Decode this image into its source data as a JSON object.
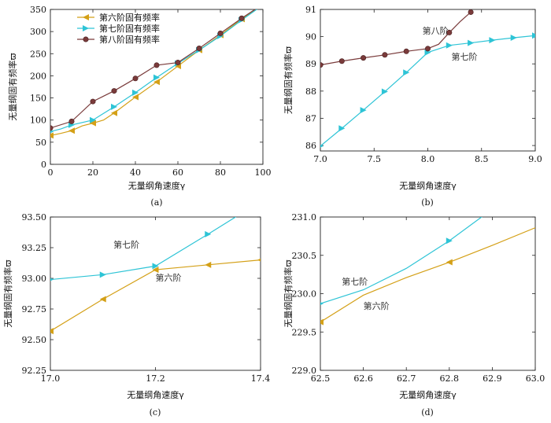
{
  "colors": {
    "sixth": "#D4A017",
    "seventh": "#2EC4D6",
    "eighth": "#7A3B3B"
  },
  "chart_data": [
    {
      "id": "a",
      "type": "line",
      "caption": "(a)",
      "xlabel": "无量纲角速度γ",
      "ylabel": "无量纲固有频率ϖ",
      "xlim": [
        0,
        100
      ],
      "ylim": [
        0,
        350
      ],
      "xticks": [
        0,
        20,
        40,
        60,
        80,
        100
      ],
      "yticks": [
        0,
        50,
        100,
        150,
        200,
        250,
        300,
        350
      ],
      "legend": [
        "第六阶固有频率",
        "第七阶固有频率",
        "第八阶固有频率"
      ],
      "series": [
        {
          "name": "第六阶固有频率",
          "color": "sixth",
          "marker": "tri-left",
          "x": [
            0,
            5,
            10,
            15,
            20,
            25,
            30,
            40,
            50,
            60,
            70,
            80,
            90,
            100
          ],
          "y": [
            65,
            70,
            76,
            87,
            93,
            100,
            116,
            152,
            186,
            222,
            258,
            292,
            328,
            360
          ],
          "marked": [
            0,
            10,
            20,
            30,
            40,
            50,
            60,
            70,
            80,
            90
          ]
        },
        {
          "name": "第七阶固有频率",
          "color": "seventh",
          "marker": "tri-right",
          "x": [
            0,
            5,
            10,
            20,
            30,
            40,
            50,
            60,
            70,
            80,
            90,
            100
          ],
          "y": [
            74,
            80,
            89,
            100,
            130,
            162,
            196,
            228,
            258,
            290,
            326,
            360
          ],
          "marked": [
            0,
            10,
            20,
            30,
            40,
            50,
            60,
            70,
            80,
            90
          ]
        },
        {
          "name": "第八阶固有频率",
          "color": "eighth",
          "marker": "circle",
          "x": [
            0,
            10,
            20,
            30,
            40,
            50,
            60,
            70,
            80,
            90,
            100
          ],
          "y": [
            82,
            97,
            142,
            166,
            194,
            224,
            230,
            262,
            296,
            330,
            362
          ],
          "marked": [
            0,
            10,
            20,
            30,
            40,
            50,
            60,
            70,
            80,
            90
          ]
        }
      ],
      "annotations": []
    },
    {
      "id": "b",
      "type": "line",
      "caption": "(b)",
      "xlabel": "无量纲角速度γ",
      "ylabel": "无量纲固有频率ϖ",
      "xlim": [
        7.0,
        9.0
      ],
      "ylim": [
        85.8,
        91.0
      ],
      "xticks": [
        7.0,
        7.5,
        8.0,
        8.5,
        9.0
      ],
      "xtick_labels": [
        "7.0",
        "7.5",
        "8.0",
        "8.5",
        "9.0"
      ],
      "yticks": [
        86,
        87,
        88,
        89,
        90,
        91
      ],
      "series": [
        {
          "name": "第七阶",
          "color": "seventh",
          "marker": "tri-right",
          "x": [
            7.0,
            7.2,
            7.4,
            7.6,
            7.8,
            8.0,
            8.2,
            8.4,
            8.6,
            8.8,
            9.0
          ],
          "y": [
            85.98,
            86.63,
            87.3,
            87.98,
            88.68,
            89.42,
            89.68,
            89.77,
            89.87,
            89.96,
            90.04
          ],
          "marked": [
            7.0,
            7.2,
            7.4,
            7.6,
            7.8,
            8.0,
            8.2,
            8.4,
            8.6,
            8.8,
            9.0
          ]
        },
        {
          "name": "第八阶",
          "color": "eighth",
          "marker": "circle",
          "x": [
            7.0,
            7.2,
            7.4,
            7.6,
            7.8,
            8.0,
            8.1,
            8.2,
            8.3,
            8.4
          ],
          "y": [
            88.96,
            89.1,
            89.22,
            89.33,
            89.46,
            89.56,
            89.72,
            90.15,
            90.55,
            90.9
          ],
          "marked": [
            7.0,
            7.2,
            7.4,
            7.6,
            7.8,
            8.0,
            8.2,
            8.4
          ]
        }
      ],
      "annotations": [
        {
          "text": "第八阶",
          "x": 7.95,
          "y": 90.1
        },
        {
          "text": "第七阶",
          "x": 8.22,
          "y": 89.15
        }
      ]
    },
    {
      "id": "c",
      "type": "line",
      "caption": "(c)",
      "xlabel": "无量纲角速度γ",
      "ylabel": "无量纲固有频率ϖ",
      "xlim": [
        17.0,
        17.4
      ],
      "ylim": [
        92.25,
        93.5
      ],
      "xticks": [
        17.0,
        17.2,
        17.4
      ],
      "xtick_labels": [
        "17.0",
        "17.2",
        "17.4"
      ],
      "yticks": [
        92.25,
        92.5,
        92.75,
        93.0,
        93.25,
        93.5
      ],
      "ytick_labels": [
        "92.25",
        "92.50",
        "92.75",
        "93.00",
        "93.25",
        "93.50"
      ],
      "series": [
        {
          "name": "第七阶",
          "color": "seventh",
          "marker": "tri-right",
          "x": [
            17.0,
            17.1,
            17.2,
            17.3,
            17.36
          ],
          "y": [
            92.99,
            93.03,
            93.1,
            93.36,
            93.52
          ],
          "marked": [
            17.0,
            17.1,
            17.2,
            17.3
          ]
        },
        {
          "name": "第六阶",
          "color": "sixth",
          "marker": "tri-left",
          "x": [
            17.0,
            17.1,
            17.2,
            17.3,
            17.4
          ],
          "y": [
            92.57,
            92.83,
            93.07,
            93.11,
            93.15
          ],
          "marked": [
            17.0,
            17.1,
            17.2,
            17.3,
            17.4
          ]
        }
      ],
      "annotations": [
        {
          "text": "第七阶",
          "x": 17.12,
          "y": 93.25
        },
        {
          "text": "第六阶",
          "x": 17.2,
          "y": 92.98
        }
      ]
    },
    {
      "id": "d",
      "type": "line",
      "caption": "(d)",
      "xlabel": "无量纲角速度γ",
      "ylabel": "无量纲固有频率ϖ",
      "xlim": [
        62.5,
        63.0
      ],
      "ylim": [
        229.0,
        231.0
      ],
      "xticks": [
        62.5,
        62.6,
        62.7,
        62.8,
        62.9,
        63.0
      ],
      "xtick_labels": [
        "62.5",
        "62.6",
        "62.7",
        "62.8",
        "62.9",
        "63.0"
      ],
      "yticks": [
        229.0,
        229.5,
        230.0,
        230.5,
        231.0
      ],
      "ytick_labels": [
        "229.0",
        "229.5",
        "230.0",
        "230.5",
        "231.0"
      ],
      "series": [
        {
          "name": "第七阶",
          "color": "seventh",
          "marker": "tri-right",
          "x": [
            62.5,
            62.6,
            62.7,
            62.8,
            62.88
          ],
          "y": [
            229.87,
            230.05,
            230.33,
            230.69,
            231.02
          ],
          "marked": [
            62.5,
            62.8
          ]
        },
        {
          "name": "第六阶",
          "color": "sixth",
          "marker": "tri-left",
          "x": [
            62.5,
            62.6,
            62.7,
            62.8,
            62.9,
            63.0
          ],
          "y": [
            229.63,
            229.98,
            230.21,
            230.41,
            230.63,
            230.86
          ],
          "marked": [
            62.5,
            62.8
          ]
        }
      ],
      "annotations": [
        {
          "text": "第七阶",
          "x": 62.55,
          "y": 230.12
        },
        {
          "text": "第六阶",
          "x": 62.6,
          "y": 229.8
        }
      ]
    }
  ]
}
